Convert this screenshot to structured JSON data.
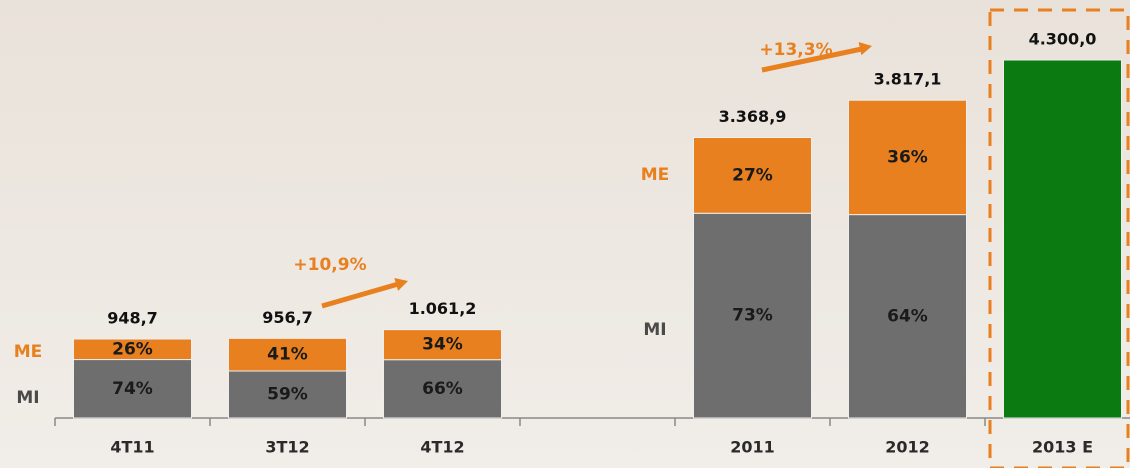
{
  "chart_data": {
    "type": "stacked_bar",
    "categories": [
      "4T11",
      "3T12",
      "4T12",
      null,
      "2011",
      "2012",
      "2013 E"
    ],
    "totals": {
      "values": [
        948.7,
        956.7,
        1061.2,
        null,
        3368.9,
        3817.1,
        4300.0
      ],
      "value_labels": [
        "948,7",
        "956,7",
        "1.061,2",
        null,
        "3.368,9",
        "3.817,1",
        "4.300,0"
      ]
    },
    "series": [
      {
        "name": "MI",
        "color": "#6e6e6e",
        "label_color": "#4a4a4a",
        "values": [
          74,
          59,
          66,
          null,
          73,
          64,
          null
        ],
        "value_labels": [
          "74%",
          "59%",
          "66%",
          null,
          "73%",
          "64%",
          null
        ]
      },
      {
        "name": "ME",
        "color": "#e8801f",
        "label_color": "#e8801f",
        "values": [
          26,
          41,
          34,
          null,
          27,
          36,
          null
        ],
        "value_labels": [
          "26%",
          "41%",
          "34%",
          null,
          "27%",
          "36%",
          null
        ]
      }
    ],
    "forecast_color": "#0b7a10",
    "annotations": [
      "+10,9%",
      "+13,3%"
    ],
    "annotation_color": "#e8801f"
  }
}
